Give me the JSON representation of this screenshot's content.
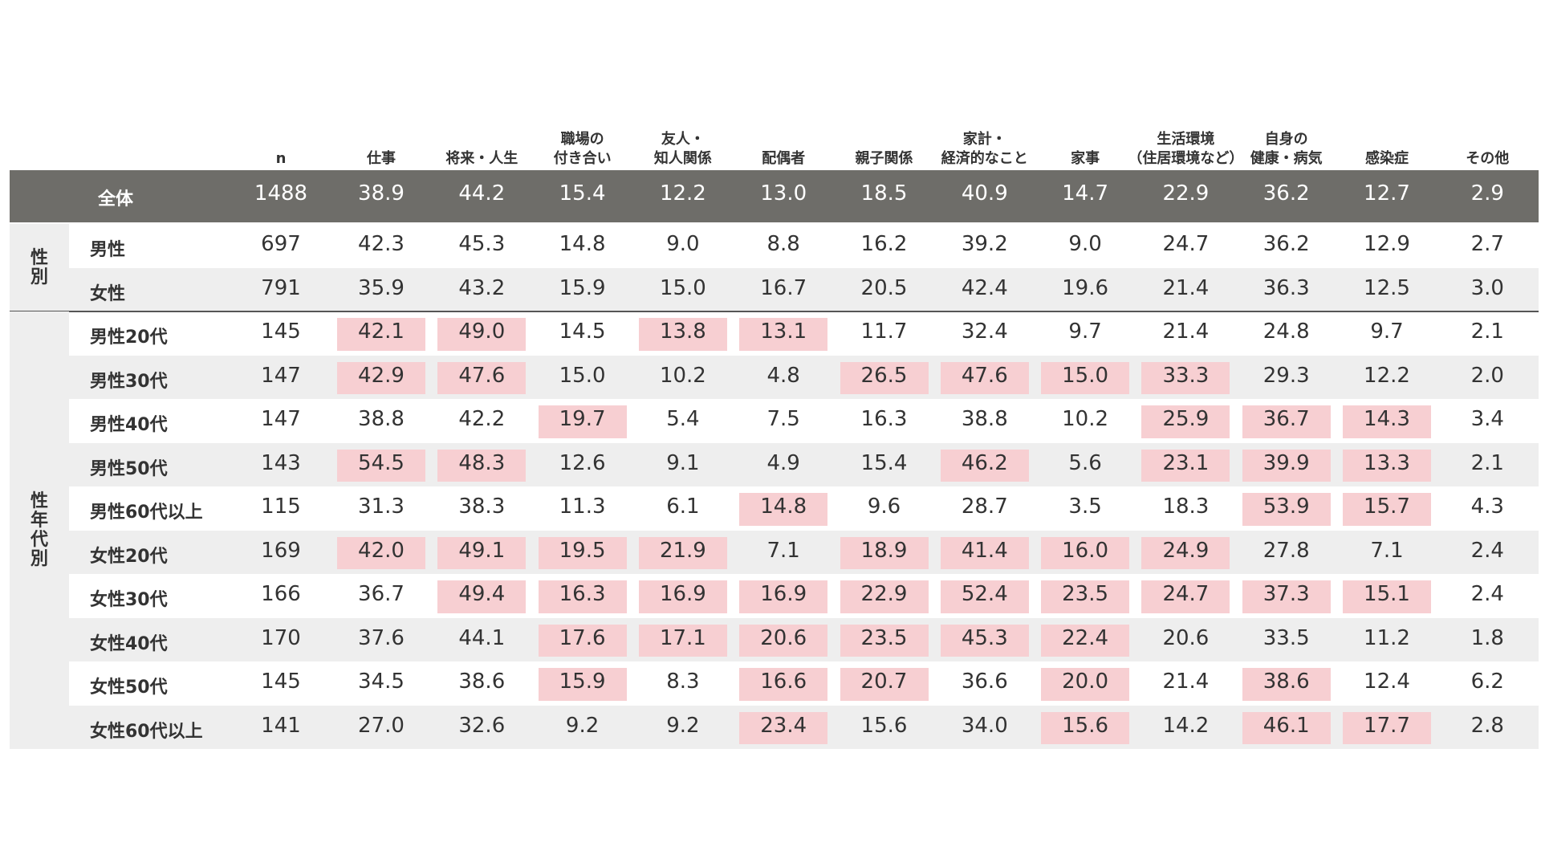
{
  "chart_data": {
    "type": "table",
    "n_header": "n",
    "columns": [
      "仕事",
      "将来・人生",
      "職場の\n付き合い",
      "友人・\n知人関係",
      "配偶者",
      "親子関係",
      "家計・\n経済的なこと",
      "家事",
      "生活環境\n（住居環境など）",
      "自身の\n健康・病気",
      "感染症",
      "その他"
    ],
    "total": {
      "label": "全体",
      "n": "1488",
      "values": [
        "38.9",
        "44.2",
        "15.4",
        "12.2",
        "13.0",
        "18.5",
        "40.9",
        "14.7",
        "22.9",
        "36.2",
        "12.7",
        "2.9"
      ]
    },
    "groups": [
      {
        "label": "性\n別",
        "rows": [
          {
            "label": "男性",
            "n": "697",
            "values": [
              "42.3",
              "45.3",
              "14.8",
              "9.0",
              "8.8",
              "16.2",
              "39.2",
              "9.0",
              "24.7",
              "36.2",
              "12.9",
              "2.7"
            ],
            "highlight": []
          },
          {
            "label": "女性",
            "n": "791",
            "values": [
              "35.9",
              "43.2",
              "15.9",
              "15.0",
              "16.7",
              "20.5",
              "42.4",
              "19.6",
              "21.4",
              "36.3",
              "12.5",
              "3.0"
            ],
            "highlight": []
          }
        ]
      },
      {
        "label": "性\n年\n代\n別",
        "rows": [
          {
            "label": "男性20代",
            "n": "145",
            "values": [
              "42.1",
              "49.0",
              "14.5",
              "13.8",
              "13.1",
              "11.7",
              "32.4",
              "9.7",
              "21.4",
              "24.8",
              "9.7",
              "2.1"
            ],
            "highlight": [
              0,
              1,
              3,
              4
            ]
          },
          {
            "label": "男性30代",
            "n": "147",
            "values": [
              "42.9",
              "47.6",
              "15.0",
              "10.2",
              "4.8",
              "26.5",
              "47.6",
              "15.0",
              "33.3",
              "29.3",
              "12.2",
              "2.0"
            ],
            "highlight": [
              0,
              1,
              5,
              6,
              7,
              8
            ]
          },
          {
            "label": "男性40代",
            "n": "147",
            "values": [
              "38.8",
              "42.2",
              "19.7",
              "5.4",
              "7.5",
              "16.3",
              "38.8",
              "10.2",
              "25.9",
              "36.7",
              "14.3",
              "3.4"
            ],
            "highlight": [
              2,
              8,
              9,
              10
            ]
          },
          {
            "label": "男性50代",
            "n": "143",
            "values": [
              "54.5",
              "48.3",
              "12.6",
              "9.1",
              "4.9",
              "15.4",
              "46.2",
              "5.6",
              "23.1",
              "39.9",
              "13.3",
              "2.1"
            ],
            "highlight": [
              0,
              1,
              6,
              8,
              9,
              10
            ]
          },
          {
            "label": "男性60代以上",
            "n": "115",
            "values": [
              "31.3",
              "38.3",
              "11.3",
              "6.1",
              "14.8",
              "9.6",
              "28.7",
              "3.5",
              "18.3",
              "53.9",
              "15.7",
              "4.3"
            ],
            "highlight": [
              4,
              9,
              10
            ]
          },
          {
            "label": "女性20代",
            "n": "169",
            "values": [
              "42.0",
              "49.1",
              "19.5",
              "21.9",
              "7.1",
              "18.9",
              "41.4",
              "16.0",
              "24.9",
              "27.8",
              "7.1",
              "2.4"
            ],
            "highlight": [
              0,
              1,
              2,
              3,
              5,
              6,
              7,
              8
            ]
          },
          {
            "label": "女性30代",
            "n": "166",
            "values": [
              "36.7",
              "49.4",
              "16.3",
              "16.9",
              "16.9",
              "22.9",
              "52.4",
              "23.5",
              "24.7",
              "37.3",
              "15.1",
              "2.4"
            ],
            "highlight": [
              1,
              2,
              3,
              4,
              5,
              6,
              7,
              8,
              9,
              10
            ]
          },
          {
            "label": "女性40代",
            "n": "170",
            "values": [
              "37.6",
              "44.1",
              "17.6",
              "17.1",
              "20.6",
              "23.5",
              "45.3",
              "22.4",
              "20.6",
              "33.5",
              "11.2",
              "1.8"
            ],
            "highlight": [
              2,
              3,
              4,
              5,
              6,
              7
            ]
          },
          {
            "label": "女性50代",
            "n": "145",
            "values": [
              "34.5",
              "38.6",
              "15.9",
              "8.3",
              "16.6",
              "20.7",
              "36.6",
              "20.0",
              "21.4",
              "38.6",
              "12.4",
              "6.2"
            ],
            "highlight": [
              2,
              4,
              5,
              7,
              9
            ]
          },
          {
            "label": "女性60代以上",
            "n": "141",
            "values": [
              "27.0",
              "32.6",
              "9.2",
              "9.2",
              "23.4",
              "15.6",
              "34.0",
              "15.6",
              "14.2",
              "46.1",
              "17.7",
              "2.8"
            ],
            "highlight": [
              4,
              7,
              9,
              10
            ]
          }
        ]
      }
    ]
  }
}
